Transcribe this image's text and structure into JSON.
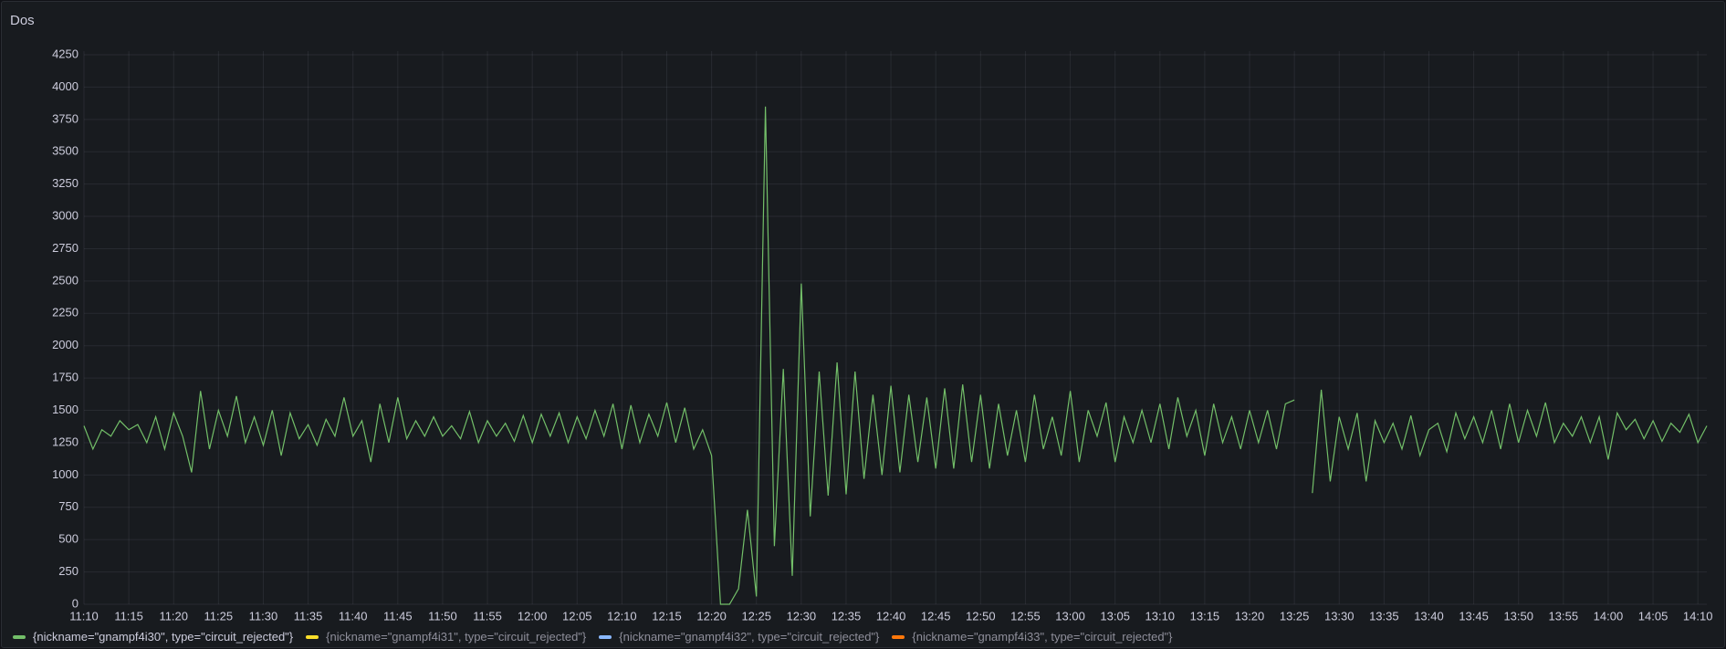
{
  "chart_data": {
    "type": "line",
    "title": "Dos",
    "x": [
      670,
      671,
      672,
      673,
      674,
      675,
      676,
      677,
      678,
      679,
      680,
      681,
      682,
      683,
      684,
      685,
      686,
      687,
      688,
      689,
      690,
      691,
      692,
      693,
      694,
      695,
      696,
      697,
      698,
      699,
      700,
      701,
      702,
      703,
      704,
      705,
      706,
      707,
      708,
      709,
      710,
      711,
      712,
      713,
      714,
      715,
      716,
      717,
      718,
      719,
      720,
      721,
      722,
      723,
      724,
      725,
      726,
      727,
      728,
      729,
      730,
      731,
      732,
      733,
      734,
      735,
      736,
      737,
      738,
      739,
      740,
      741,
      742,
      743,
      744,
      745,
      746,
      747,
      748,
      749,
      750,
      751,
      752,
      753,
      754,
      755,
      756,
      757,
      758,
      759,
      760,
      761,
      762,
      763,
      764,
      765,
      766,
      767,
      768,
      769,
      770,
      771,
      772,
      773,
      774,
      775,
      776,
      777,
      778,
      779,
      780,
      781,
      782,
      783,
      784,
      785,
      786,
      787,
      788,
      789,
      790,
      791,
      792,
      793,
      794,
      795,
      796,
      797,
      798,
      799,
      800,
      801,
      802,
      803,
      804,
      805,
      806,
      807,
      808,
      809,
      810,
      811,
      812,
      813,
      814,
      815,
      816,
      817,
      818,
      819,
      820,
      821,
      822,
      823,
      824,
      825,
      826,
      827,
      828,
      829,
      830,
      831,
      832,
      833,
      834,
      835,
      836,
      837,
      838,
      839,
      840,
      841,
      842,
      843,
      844,
      845,
      846,
      847,
      848,
      849,
      850,
      851
    ],
    "series": [
      {
        "name": "{nickname=\"gnampf4i30\", type=\"circuit_rejected\"}",
        "color": "#73bf69",
        "values": [
          1380,
          1200,
          1350,
          1300,
          1420,
          1350,
          1390,
          1250,
          1450,
          1200,
          1480,
          1300,
          1020,
          1650,
          1200,
          1500,
          1300,
          1610,
          1250,
          1450,
          1230,
          1500,
          1150,
          1480,
          1280,
          1390,
          1230,
          1430,
          1300,
          1600,
          1300,
          1420,
          1100,
          1550,
          1250,
          1600,
          1280,
          1420,
          1300,
          1450,
          1300,
          1380,
          1280,
          1490,
          1250,
          1420,
          1300,
          1400,
          1260,
          1460,
          1250,
          1470,
          1300,
          1480,
          1250,
          1450,
          1280,
          1500,
          1300,
          1550,
          1200,
          1540,
          1250,
          1470,
          1300,
          1560,
          1250,
          1520,
          1200,
          1350,
          1150,
          0,
          0,
          120,
          730,
          60,
          3850,
          450,
          1820,
          220,
          2480,
          680,
          1800,
          840,
          1870,
          850,
          1800,
          970,
          1620,
          1000,
          1690,
          1020,
          1620,
          1100,
          1600,
          1050,
          1670,
          1050,
          1700,
          1100,
          1620,
          1050,
          1550,
          1150,
          1500,
          1100,
          1620,
          1200,
          1450,
          1150,
          1650,
          1100,
          1500,
          1300,
          1560,
          1100,
          1450,
          1250,
          1500,
          1250,
          1550,
          1200,
          1600,
          1300,
          1500,
          1150,
          1550,
          1250,
          1450,
          1200,
          1500,
          1250,
          1500,
          1200,
          1550,
          1580,
          null,
          860,
          1660,
          950,
          1450,
          1200,
          1480,
          950,
          1420,
          1250,
          1400,
          1200,
          1460,
          1150,
          1350,
          1400,
          1180,
          1480,
          1280,
          1450,
          1250,
          1500,
          1200,
          1550,
          1250,
          1500,
          1300,
          1560,
          1250,
          1400,
          1300,
          1450,
          1250,
          1450,
          1120,
          1480,
          1350,
          1430,
          1280,
          1420,
          1260,
          1400,
          1330,
          1470,
          1250,
          1380
        ]
      },
      {
        "name": "{nickname=\"gnampf4i31\", type=\"circuit_rejected\"}",
        "color": "#fade2a",
        "values": [
          null,
          null,
          null,
          null,
          null,
          null,
          null,
          null,
          null,
          null,
          null,
          null,
          null,
          null,
          null,
          null,
          null,
          null,
          null,
          null,
          null,
          null,
          null,
          null,
          null,
          null,
          null,
          null,
          null,
          null,
          null,
          null,
          null,
          null,
          null,
          null,
          null,
          null,
          null,
          null,
          null,
          null,
          null,
          null,
          null,
          null,
          null,
          null,
          null,
          null,
          null,
          null,
          null,
          null,
          null,
          null,
          null,
          null,
          null,
          null,
          null,
          null,
          null,
          null,
          null,
          null,
          null,
          null,
          null,
          null,
          null,
          null,
          null,
          null,
          null,
          null,
          null,
          null,
          null,
          null,
          null,
          null,
          null,
          null,
          null,
          null,
          null,
          null,
          null,
          null,
          null,
          null,
          null,
          null,
          null,
          null,
          null,
          null,
          null,
          null,
          null,
          null,
          null,
          null,
          null,
          null,
          null,
          null,
          null,
          null,
          null,
          null,
          null,
          null,
          null,
          null,
          null,
          null,
          null,
          null,
          null,
          null,
          null,
          null,
          null,
          null,
          null,
          null,
          null,
          null,
          null,
          null,
          null,
          null,
          null,
          null,
          null,
          null,
          null,
          null,
          null,
          null,
          null,
          null,
          null,
          null,
          null,
          null,
          null,
          null,
          null,
          null,
          null,
          null,
          null,
          null,
          null,
          null,
          null,
          null,
          null,
          null,
          null,
          null,
          null,
          null,
          null,
          null,
          null,
          null,
          null,
          null,
          null,
          null,
          null,
          null,
          null,
          null,
          null,
          null,
          null,
          null
        ]
      },
      {
        "name": "{nickname=\"gnampf4i32\", type=\"circuit_rejected\"}",
        "color": "#8ab8ff",
        "values": [
          null,
          null,
          null,
          null,
          null,
          null,
          null,
          null,
          null,
          null,
          null,
          null,
          null,
          null,
          null,
          null,
          null,
          null,
          null,
          null,
          null,
          null,
          null,
          null,
          null,
          null,
          null,
          null,
          null,
          null,
          null,
          null,
          null,
          null,
          null,
          null,
          null,
          null,
          null,
          null,
          null,
          null,
          null,
          null,
          null,
          null,
          null,
          null,
          null,
          null,
          null,
          null,
          null,
          null,
          null,
          null,
          null,
          null,
          null,
          null,
          null,
          null,
          null,
          null,
          null,
          null,
          null,
          null,
          null,
          null,
          null,
          null,
          null,
          null,
          null,
          null,
          null,
          null,
          null,
          null,
          null,
          null,
          null,
          null,
          null,
          null,
          null,
          null,
          null,
          null,
          null,
          null,
          null,
          null,
          null,
          null,
          null,
          null,
          null,
          null,
          null,
          null,
          null,
          null,
          null,
          null,
          null,
          null,
          null,
          null,
          null,
          null,
          null,
          null,
          null,
          null,
          null,
          null,
          null,
          null,
          null,
          null,
          null,
          null,
          null,
          null,
          null,
          null,
          null,
          null,
          null,
          null,
          null,
          null,
          null,
          null,
          null,
          null,
          null,
          null,
          null,
          null,
          null,
          null,
          null,
          null,
          null,
          null,
          null,
          null,
          null,
          null,
          null,
          null,
          null,
          null,
          null,
          null,
          null,
          null,
          null,
          null,
          null,
          null,
          null,
          null,
          null,
          null,
          null,
          null,
          null,
          null,
          null,
          null,
          null,
          null,
          null,
          null,
          null,
          null,
          null,
          null
        ]
      },
      {
        "name": "{nickname=\"gnampf4i33\", type=\"circuit_rejected\"}",
        "color": "#ff780a",
        "values": [
          null,
          null,
          null,
          null,
          null,
          null,
          null,
          null,
          null,
          null,
          null,
          null,
          null,
          null,
          null,
          null,
          null,
          null,
          null,
          null,
          null,
          null,
          null,
          null,
          null,
          null,
          null,
          null,
          null,
          null,
          null,
          null,
          null,
          null,
          null,
          null,
          null,
          null,
          null,
          null,
          null,
          null,
          null,
          null,
          null,
          null,
          null,
          null,
          null,
          null,
          null,
          null,
          null,
          null,
          null,
          null,
          null,
          null,
          null,
          null,
          null,
          null,
          null,
          null,
          null,
          null,
          null,
          null,
          null,
          null,
          null,
          null,
          null,
          null,
          null,
          null,
          null,
          null,
          null,
          null,
          null,
          null,
          null,
          null,
          null,
          null,
          null,
          null,
          null,
          null,
          null,
          null,
          null,
          null,
          null,
          null,
          null,
          null,
          null,
          null,
          null,
          null,
          null,
          null,
          null,
          null,
          null,
          null,
          null,
          null,
          null,
          null,
          null,
          null,
          null,
          null,
          null,
          null,
          null,
          null,
          null,
          null,
          null,
          null,
          null,
          null,
          null,
          null,
          null,
          null,
          null,
          null,
          null,
          null,
          null,
          null,
          null,
          null,
          null,
          null,
          null,
          null,
          null,
          null,
          null,
          null,
          null,
          null,
          null,
          null,
          null,
          null,
          null,
          null,
          null,
          null,
          null,
          null,
          null,
          null,
          null,
          null,
          null,
          null,
          null,
          null,
          null,
          null,
          null,
          null,
          null,
          null,
          null,
          null,
          null,
          null,
          null,
          null,
          null,
          null,
          null,
          null
        ]
      }
    ],
    "xlim": [
      670,
      851
    ],
    "xticks": [
      {
        "value": 670,
        "label": "11:10"
      },
      {
        "value": 675,
        "label": "11:15"
      },
      {
        "value": 680,
        "label": "11:20"
      },
      {
        "value": 685,
        "label": "11:25"
      },
      {
        "value": 690,
        "label": "11:30"
      },
      {
        "value": 695,
        "label": "11:35"
      },
      {
        "value": 700,
        "label": "11:40"
      },
      {
        "value": 705,
        "label": "11:45"
      },
      {
        "value": 710,
        "label": "11:50"
      },
      {
        "value": 715,
        "label": "11:55"
      },
      {
        "value": 720,
        "label": "12:00"
      },
      {
        "value": 725,
        "label": "12:05"
      },
      {
        "value": 730,
        "label": "12:10"
      },
      {
        "value": 735,
        "label": "12:15"
      },
      {
        "value": 740,
        "label": "12:20"
      },
      {
        "value": 745,
        "label": "12:25"
      },
      {
        "value": 750,
        "label": "12:30"
      },
      {
        "value": 755,
        "label": "12:35"
      },
      {
        "value": 760,
        "label": "12:40"
      },
      {
        "value": 765,
        "label": "12:45"
      },
      {
        "value": 770,
        "label": "12:50"
      },
      {
        "value": 775,
        "label": "12:55"
      },
      {
        "value": 780,
        "label": "13:00"
      },
      {
        "value": 785,
        "label": "13:05"
      },
      {
        "value": 790,
        "label": "13:10"
      },
      {
        "value": 795,
        "label": "13:15"
      },
      {
        "value": 800,
        "label": "13:20"
      },
      {
        "value": 805,
        "label": "13:25"
      },
      {
        "value": 810,
        "label": "13:30"
      },
      {
        "value": 815,
        "label": "13:35"
      },
      {
        "value": 820,
        "label": "13:40"
      },
      {
        "value": 825,
        "label": "13:45"
      },
      {
        "value": 830,
        "label": "13:50"
      },
      {
        "value": 835,
        "label": "13:55"
      },
      {
        "value": 840,
        "label": "14:00"
      },
      {
        "value": 845,
        "label": "14:05"
      },
      {
        "value": 850,
        "label": "14:10"
      }
    ],
    "ylim": [
      0,
      4250
    ],
    "yticks": [
      0,
      250,
      500,
      750,
      1000,
      1250,
      1500,
      1750,
      2000,
      2250,
      2500,
      2750,
      3000,
      3250,
      3500,
      3750,
      4000,
      4250
    ],
    "grid": true,
    "legend": "bottom"
  }
}
